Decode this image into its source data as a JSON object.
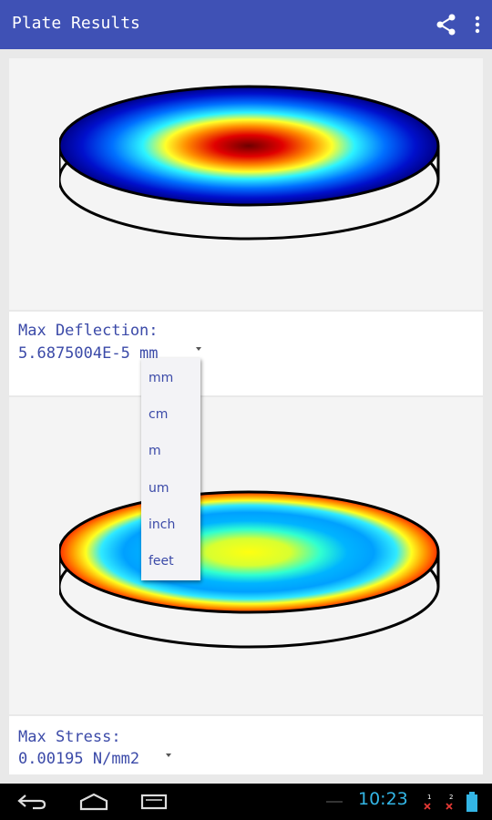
{
  "app_bar": {
    "title": "Plate Results",
    "share_icon": "share-icon",
    "more_icon": "overflow-menu-icon",
    "color": "#3f51b5"
  },
  "deflection": {
    "label": "Max Deflection:",
    "value": "5.6875004E-5 mm"
  },
  "unit_menu": {
    "options": [
      "mm",
      "cm",
      "m",
      "um",
      "inch",
      "feet"
    ]
  },
  "stress": {
    "label": "Max Stress:",
    "value": "0.00195 N/mm2"
  },
  "status_bar": {
    "time": "10:23"
  }
}
